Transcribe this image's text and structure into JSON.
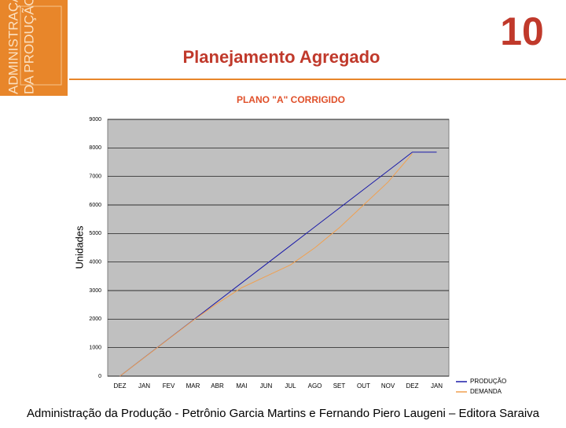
{
  "slide": {
    "cover": [
      "ADMINISTRAÇÃO",
      "DA PRODUÇÃO"
    ],
    "title": "Planejamento Agregado",
    "number": "10",
    "footer": "Administração da Produção - Petrônio Garcia Martins e Fernando Piero Laugeni – Editora Saraiva"
  },
  "chart_data": {
    "type": "line",
    "title": "PLANO \"A\" CORRIGIDO",
    "y_label": "Unidades",
    "categories": [
      "DEZ",
      "JAN",
      "FEV",
      "MAR",
      "ABR",
      "MAI",
      "JUN",
      "JUL",
      "AGO",
      "SET",
      "OUT",
      "NOV",
      "DEZ",
      "JAN"
    ],
    "series": [
      {
        "name": "PRODUÇÃO",
        "color": "#1a1aa8",
        "values": [
          0,
          654,
          1308,
          1962,
          2616,
          3270,
          3924,
          4578,
          5232,
          5886,
          6540,
          7194,
          7850,
          7850
        ]
      },
      {
        "name": "DEMANDA",
        "color": "#f0a050",
        "values": [
          0,
          650,
          1300,
          1950,
          2550,
          3100,
          3500,
          3900,
          4500,
          5200,
          6000,
          6800,
          7800,
          null
        ]
      }
    ],
    "ylim": [
      0,
      9000
    ],
    "yticks": [
      0,
      1000,
      2000,
      3000,
      4000,
      5000,
      6000,
      7000,
      8000,
      9000
    ],
    "grid": true,
    "legend": "right"
  }
}
